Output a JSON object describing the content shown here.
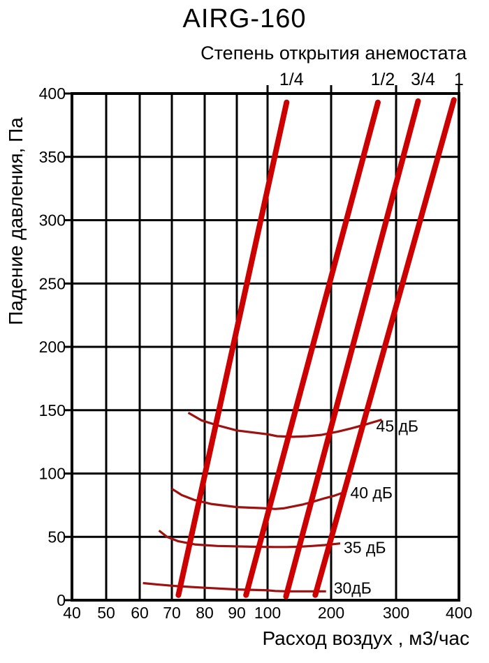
{
  "title": "AIRG-160",
  "subtitle": "Степень открытия анемостата",
  "chart_data": {
    "type": "line",
    "title": "AIRG-160",
    "subtitle": "Степень открытия анемостата",
    "xlabel": "Расход воздух , м3/час",
    "ylabel": "Падение давления, Па",
    "x_scale": "segmented (40-100 step 10, 100-400 step 100, equal tick spacing per step)",
    "x_ticks": [
      40,
      50,
      60,
      70,
      80,
      90,
      100,
      200,
      300,
      400
    ],
    "y_ticks": [
      0,
      50,
      100,
      150,
      200,
      250,
      300,
      350,
      400
    ],
    "xlim": [
      40,
      400
    ],
    "ylim": [
      0,
      400
    ],
    "grid": true,
    "legend_position": "labels above plot (opening degree) and inline right (noise)",
    "opening_lines": [
      {
        "label": "1/4",
        "points": [
          [
            72,
            4
          ],
          [
            130,
            393
          ]
        ]
      },
      {
        "label": "1/2",
        "points": [
          [
            93,
            4
          ],
          [
            272,
            393
          ]
        ]
      },
      {
        "label": "3/4",
        "points": [
          [
            129,
            3
          ],
          [
            335,
            394
          ]
        ]
      },
      {
        "label": "1",
        "points": [
          [
            175,
            4
          ],
          [
            392,
            395
          ]
        ]
      }
    ],
    "noise_curves": [
      {
        "label": "45 дБ",
        "points": [
          [
            75,
            148
          ],
          [
            79,
            142
          ],
          [
            84,
            138
          ],
          [
            90,
            134
          ],
          [
            100,
            131
          ],
          [
            115,
            129.5
          ],
          [
            140,
            129
          ],
          [
            163,
            129.5
          ],
          [
            185,
            130.5
          ],
          [
            210,
            133
          ],
          [
            230,
            135.5
          ],
          [
            255,
            139
          ],
          [
            278,
            142.5
          ]
        ]
      },
      {
        "label": "40 дБ",
        "points": [
          [
            70,
            88
          ],
          [
            73,
            83
          ],
          [
            77,
            79
          ],
          [
            82,
            76
          ],
          [
            90,
            73.5
          ],
          [
            100,
            72.5
          ],
          [
            112,
            72
          ],
          [
            125,
            72.5
          ],
          [
            140,
            74
          ],
          [
            155,
            75.5
          ],
          [
            170,
            77.5
          ],
          [
            190,
            80.5
          ],
          [
            205,
            82.5
          ],
          [
            222,
            85.5
          ]
        ]
      },
      {
        "label": "35 дБ",
        "points": [
          [
            66,
            55
          ],
          [
            68.5,
            50
          ],
          [
            72,
            46.5
          ],
          [
            77,
            44
          ],
          [
            84,
            42.8
          ],
          [
            95,
            42.2
          ],
          [
            110,
            42
          ],
          [
            130,
            42
          ],
          [
            150,
            42.2
          ],
          [
            170,
            42.8
          ],
          [
            190,
            43.5
          ],
          [
            214,
            44.8
          ]
        ]
      },
      {
        "label": "30дБ",
        "points": [
          [
            61,
            13.5
          ],
          [
            66,
            12.3
          ],
          [
            72,
            11
          ],
          [
            80,
            9.8
          ],
          [
            90,
            8.5
          ],
          [
            100,
            7.8
          ],
          [
            112,
            7.3
          ],
          [
            130,
            7
          ],
          [
            155,
            7
          ],
          [
            175,
            7
          ],
          [
            192,
            7
          ]
        ]
      }
    ],
    "colors": {
      "opening_line": "#cc0000",
      "noise_curve": "#9e1111",
      "grid": "#000000",
      "text": "#000000",
      "background": "#ffffff"
    }
  }
}
